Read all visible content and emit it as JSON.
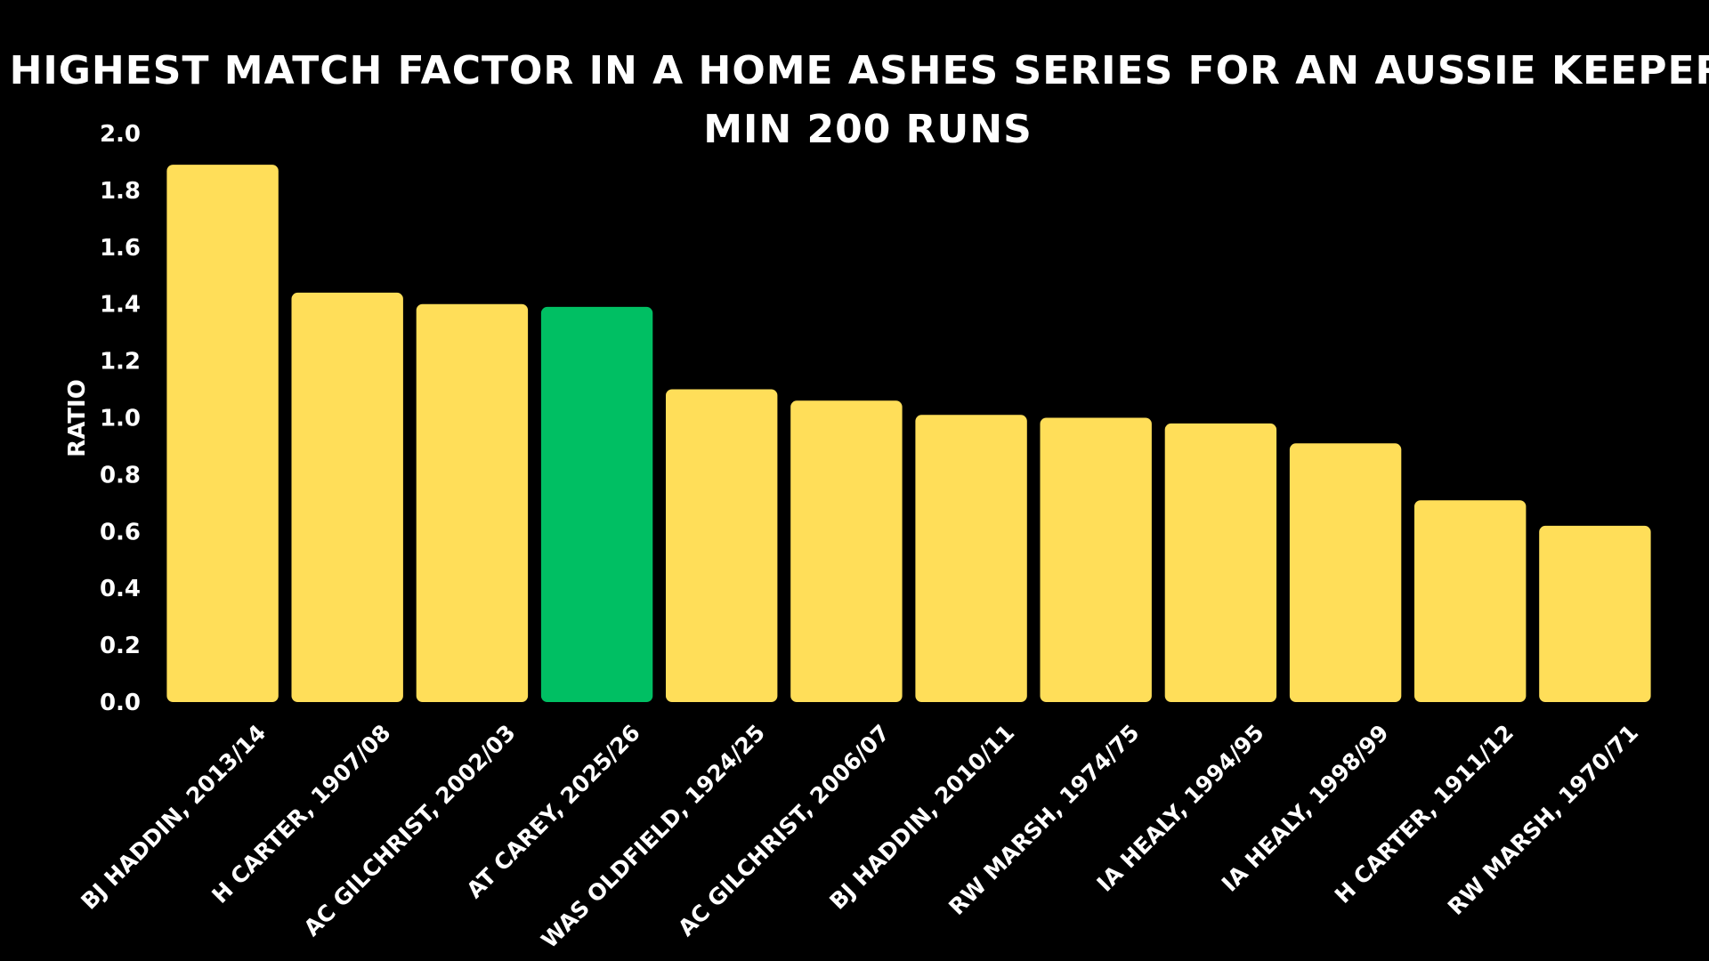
{
  "chart_data": {
    "type": "bar",
    "title": "HIGHEST MATCH FACTOR IN A HOME ASHES SERIES FOR AN AUSSIE KEEPER",
    "subtitle": "MIN 200 RUNS",
    "ylabel": "RATIO",
    "xlabel": "",
    "ylim": [
      0,
      2.0
    ],
    "yticks": [
      "0.0",
      "0.2",
      "0.4",
      "0.6",
      "0.8",
      "1.0",
      "1.2",
      "1.4",
      "1.6",
      "1.8",
      "2.0"
    ],
    "categories": [
      "BJ HADDIN, 2013/14",
      "H CARTER, 1907/08",
      "AC GILCHRIST, 2002/03",
      "AT CAREY, 2025/26",
      "WAS OLDFIELD, 1924/25",
      "AC GILCHRIST, 2006/07",
      "BJ HADDIN, 2010/11",
      "RW MARSH, 1974/75",
      "IA HEALY, 1994/95",
      "IA HEALY, 1998/99",
      "H CARTER, 1911/12",
      "RW MARSH, 1970/71"
    ],
    "values": [
      1.89,
      1.44,
      1.4,
      1.39,
      1.1,
      1.06,
      1.01,
      1.0,
      0.98,
      0.91,
      0.71,
      0.62
    ],
    "highlight_index": 3,
    "colors": {
      "bar": "#FFDE59",
      "highlight": "#00BF63",
      "background": "#000000",
      "text": "#FFFFFF"
    },
    "grid": false,
    "legend": "none"
  }
}
